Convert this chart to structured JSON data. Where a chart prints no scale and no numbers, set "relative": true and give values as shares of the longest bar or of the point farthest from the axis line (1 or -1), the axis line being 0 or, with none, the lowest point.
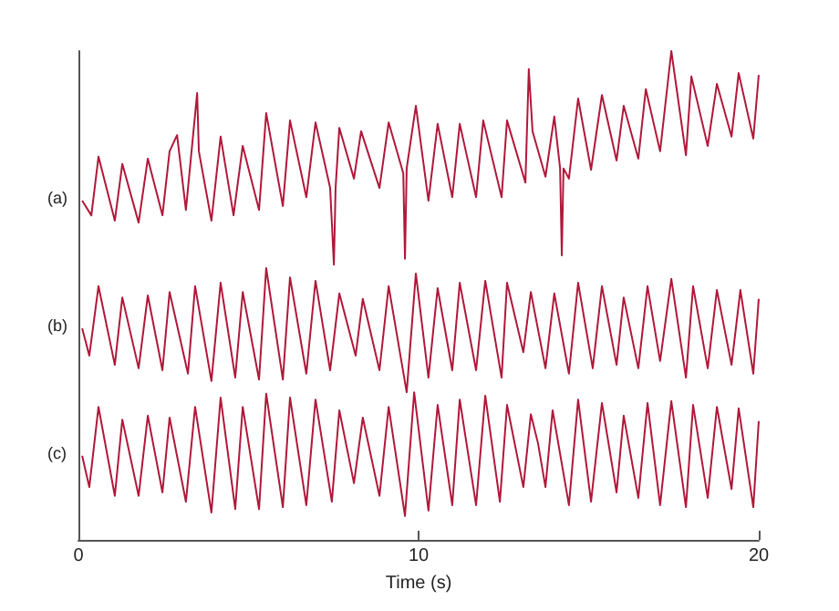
{
  "chart_data": {
    "type": "line",
    "xlabel": "Time (s)",
    "relative": true,
    "xlim": [
      0,
      20
    ],
    "xticks": [
      0,
      10,
      20
    ],
    "tick_labels": "x",
    "marker": "none",
    "line_style": "solid",
    "series": [
      {
        "name": "(a)",
        "color": "#b0183a",
        "x": [
          0.11,
          0.38,
          0.59,
          1.07,
          1.29,
          1.77,
          2.04,
          2.47,
          2.68,
          2.9,
          3.16,
          3.49,
          3.54,
          3.91,
          4.18,
          4.56,
          4.83,
          5.31,
          5.52,
          6.01,
          6.22,
          6.7,
          6.97,
          7.4,
          7.51,
          7.56,
          7.67,
          8.1,
          8.31,
          8.85,
          9.12,
          9.55,
          9.6,
          9.65,
          9.92,
          10.29,
          10.56,
          10.99,
          11.21,
          11.69,
          11.9,
          12.44,
          12.6,
          13.14,
          13.24,
          13.35,
          13.73,
          13.99,
          14.16,
          14.21,
          14.26,
          14.42,
          14.69,
          15.07,
          15.39,
          15.82,
          16.03,
          16.46,
          16.68,
          17.1,
          17.43,
          17.86,
          18.02,
          18.5,
          18.77,
          19.2,
          19.41,
          19.84,
          20
        ],
        "values": [
          0.694,
          0.664,
          0.784,
          0.653,
          0.769,
          0.649,
          0.78,
          0.664,
          0.795,
          0.828,
          0.675,
          0.914,
          0.795,
          0.653,
          0.825,
          0.664,
          0.806,
          0.675,
          0.873,
          0.683,
          0.858,
          0.701,
          0.854,
          0.72,
          0.563,
          0.72,
          0.843,
          0.739,
          0.836,
          0.72,
          0.854,
          0.75,
          0.575,
          0.76,
          0.888,
          0.694,
          0.851,
          0.701,
          0.851,
          0.701,
          0.858,
          0.701,
          0.858,
          0.731,
          0.963,
          0.836,
          0.743,
          0.866,
          0.76,
          0.582,
          0.76,
          0.739,
          0.903,
          0.757,
          0.91,
          0.776,
          0.888,
          0.78,
          0.922,
          0.795,
          1.0,
          0.787,
          0.948,
          0.806,
          0.933,
          0.825,
          0.955,
          0.821,
          0.951
        ]
      },
      {
        "name": "(b)",
        "color": "#b0183a",
        "x": [
          0.11,
          0.32,
          0.59,
          1.07,
          1.29,
          1.77,
          2.04,
          2.47,
          2.68,
          3.22,
          3.43,
          3.91,
          4.18,
          4.61,
          4.83,
          5.31,
          5.52,
          6.01,
          6.22,
          6.7,
          6.97,
          7.4,
          7.67,
          8.15,
          8.36,
          8.85,
          9.12,
          9.65,
          9.92,
          10.29,
          10.56,
          10.99,
          11.21,
          11.69,
          11.96,
          12.44,
          12.6,
          13.08,
          13.3,
          13.73,
          13.99,
          14.42,
          14.69,
          15.12,
          15.39,
          15.82,
          16.03,
          16.46,
          16.73,
          17.1,
          17.43,
          17.86,
          18.07,
          18.5,
          18.77,
          19.2,
          19.46,
          19.84,
          20
        ],
        "values": [
          0.433,
          0.377,
          0.519,
          0.358,
          0.496,
          0.351,
          0.5,
          0.347,
          0.507,
          0.34,
          0.519,
          0.325,
          0.526,
          0.332,
          0.507,
          0.328,
          0.556,
          0.328,
          0.537,
          0.34,
          0.53,
          0.347,
          0.504,
          0.377,
          0.493,
          0.347,
          0.519,
          0.302,
          0.545,
          0.332,
          0.515,
          0.347,
          0.526,
          0.347,
          0.53,
          0.332,
          0.526,
          0.384,
          0.507,
          0.351,
          0.504,
          0.34,
          0.526,
          0.351,
          0.519,
          0.358,
          0.496,
          0.351,
          0.519,
          0.366,
          0.534,
          0.332,
          0.519,
          0.351,
          0.511,
          0.358,
          0.511,
          0.34,
          0.493
        ]
      },
      {
        "name": "(c)",
        "color": "#b0183a",
        "x": [
          0.11,
          0.32,
          0.59,
          1.07,
          1.29,
          1.77,
          2.04,
          2.47,
          2.68,
          3.16,
          3.43,
          3.91,
          4.18,
          4.61,
          4.83,
          5.31,
          5.52,
          6.01,
          6.22,
          6.7,
          6.97,
          7.45,
          7.67,
          8.1,
          8.36,
          8.85,
          9.12,
          9.6,
          9.87,
          10.29,
          10.56,
          10.99,
          11.21,
          11.69,
          11.96,
          12.39,
          12.6,
          13.08,
          13.3,
          13.51,
          13.73,
          13.94,
          14.42,
          14.69,
          15.07,
          15.39,
          15.82,
          16.03,
          16.46,
          16.73,
          17.1,
          17.43,
          17.86,
          18.07,
          18.5,
          18.77,
          19.2,
          19.41,
          19.84,
          20
        ],
        "values": [
          0.172,
          0.108,
          0.272,
          0.09,
          0.246,
          0.09,
          0.254,
          0.097,
          0.25,
          0.078,
          0.272,
          0.056,
          0.291,
          0.063,
          0.272,
          0.063,
          0.299,
          0.067,
          0.291,
          0.071,
          0.287,
          0.078,
          0.265,
          0.116,
          0.25,
          0.09,
          0.272,
          0.049,
          0.302,
          0.06,
          0.276,
          0.071,
          0.287,
          0.071,
          0.295,
          0.078,
          0.276,
          0.108,
          0.257,
          0.198,
          0.108,
          0.265,
          0.071,
          0.287,
          0.078,
          0.28,
          0.097,
          0.254,
          0.086,
          0.28,
          0.071,
          0.284,
          0.067,
          0.276,
          0.086,
          0.272,
          0.104,
          0.269,
          0.067,
          0.243
        ]
      }
    ]
  }
}
